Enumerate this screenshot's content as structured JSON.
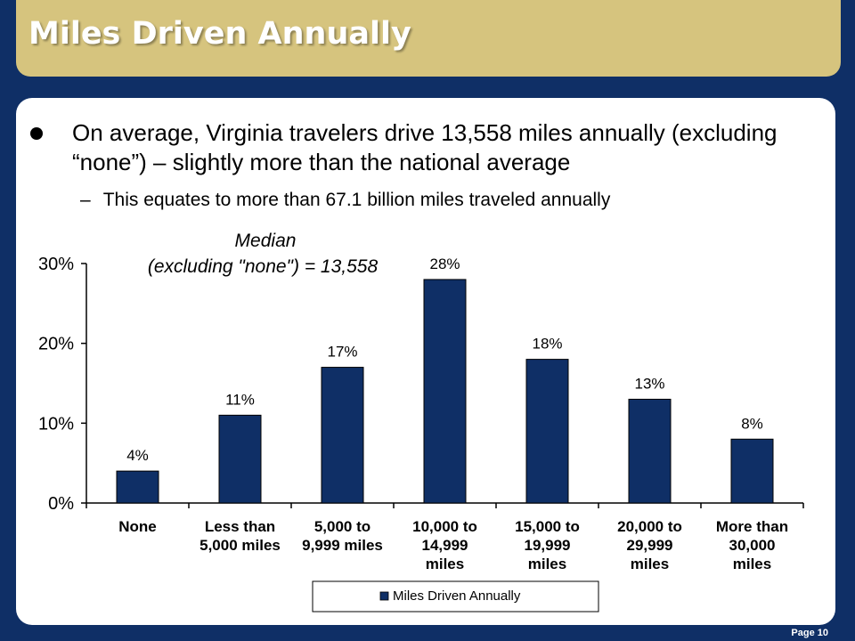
{
  "slide": {
    "title": "Miles Driven Annually",
    "bullet": "On average,  Virginia travelers drive 13,558 miles annually (excluding “none”) – slightly more than the national average",
    "sub_bullet_dash": "–",
    "sub_bullet": "This equates to more than 67.1 billion miles traveled annually",
    "page_label": "Page 10"
  },
  "colors": {
    "background": "#0f2f66",
    "title_bar": "#d6c47e",
    "bar": "#0f2f66"
  },
  "chart_data": {
    "type": "bar",
    "categories": [
      [
        "None"
      ],
      [
        "Less than",
        "5,000 miles"
      ],
      [
        "5,000 to",
        "9,999 miles"
      ],
      [
        "10,000 to",
        "14,999",
        "miles"
      ],
      [
        "15,000 to",
        "19,999",
        "miles"
      ],
      [
        "20,000 to",
        "29,999",
        "miles"
      ],
      [
        "More than",
        "30,000",
        "miles"
      ]
    ],
    "series": [
      {
        "name": "Miles Driven Annually",
        "values": [
          4,
          11,
          17,
          28,
          18,
          13,
          8
        ]
      }
    ],
    "data_labels": [
      "4%",
      "11%",
      "17%",
      "28%",
      "18%",
      "13%",
      "8%"
    ],
    "yticks": [
      0,
      10,
      20,
      30
    ],
    "ytick_labels": [
      "0%",
      "10%",
      "20%",
      "30%"
    ],
    "ylim": [
      0,
      30
    ],
    "annotation": [
      "Median",
      "(excluding \"none\") = 13,558"
    ],
    "legend": "bottom-center",
    "grid": false
  }
}
